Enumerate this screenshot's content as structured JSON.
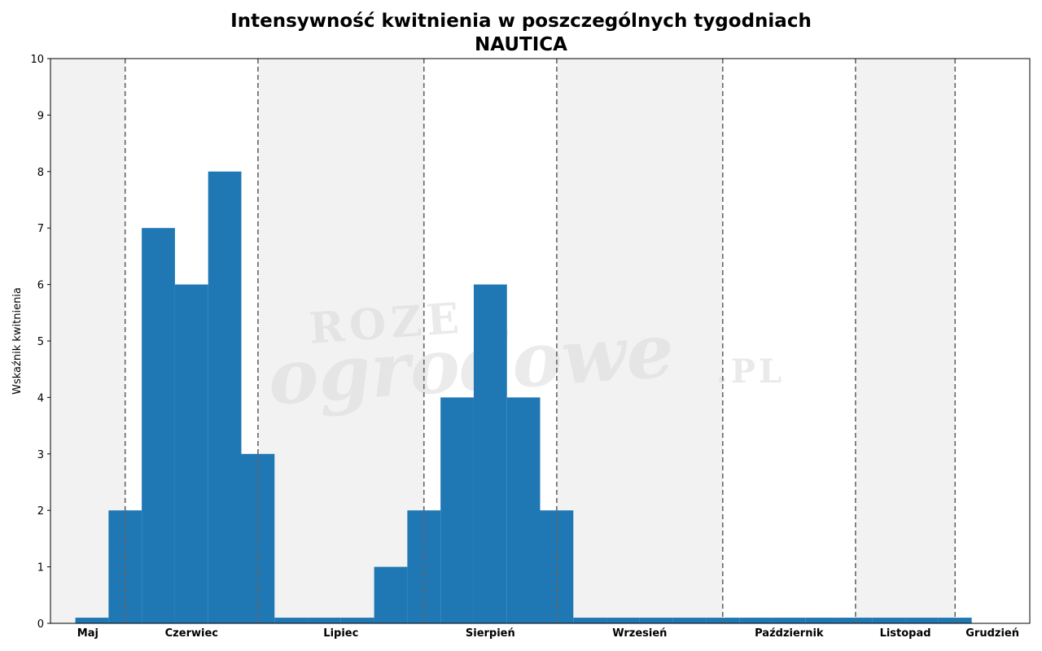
{
  "chart_data": {
    "type": "bar",
    "title": "Intensywność kwitnienia w poszczególnych tygodniach",
    "subtitle": "NAUTICA",
    "xlabel": "",
    "ylabel": "Wskaźnik kwitnienia",
    "ylim": [
      0,
      10
    ],
    "yticks": [
      0,
      1,
      2,
      3,
      4,
      5,
      6,
      7,
      8,
      9,
      10
    ],
    "x_week_range": [
      18.75,
      48.25
    ],
    "week_start": 20,
    "values": [
      0.1,
      2,
      7,
      6,
      8,
      3,
      0.1,
      0.1,
      0.1,
      1,
      2,
      4,
      6,
      4,
      2,
      0.1,
      0.1,
      0.1,
      0.1,
      0.1,
      0.1,
      0.1,
      0.1,
      0.1,
      0.1,
      0.1,
      0.1
    ],
    "months": [
      {
        "label": "Maj",
        "start": 18.75,
        "end": 21
      },
      {
        "label": "Czerwiec",
        "start": 21,
        "end": 25
      },
      {
        "label": "Lipiec",
        "start": 25,
        "end": 30
      },
      {
        "label": "Sierpień",
        "start": 30,
        "end": 34
      },
      {
        "label": "Wrzesień",
        "start": 34,
        "end": 39
      },
      {
        "label": "Październik",
        "start": 39,
        "end": 43
      },
      {
        "label": "Listopad",
        "start": 43,
        "end": 46
      },
      {
        "label": "Grudzień",
        "start": 46,
        "end": 48.25
      }
    ],
    "bar_color": "#1f77b4",
    "shade_color": "#f2f2f2",
    "divider_color": "#666666",
    "grid": false,
    "legend": "none"
  },
  "watermark": {
    "line1": "ROZE",
    "line2": "ogrodowe",
    "line3": ".PL"
  }
}
